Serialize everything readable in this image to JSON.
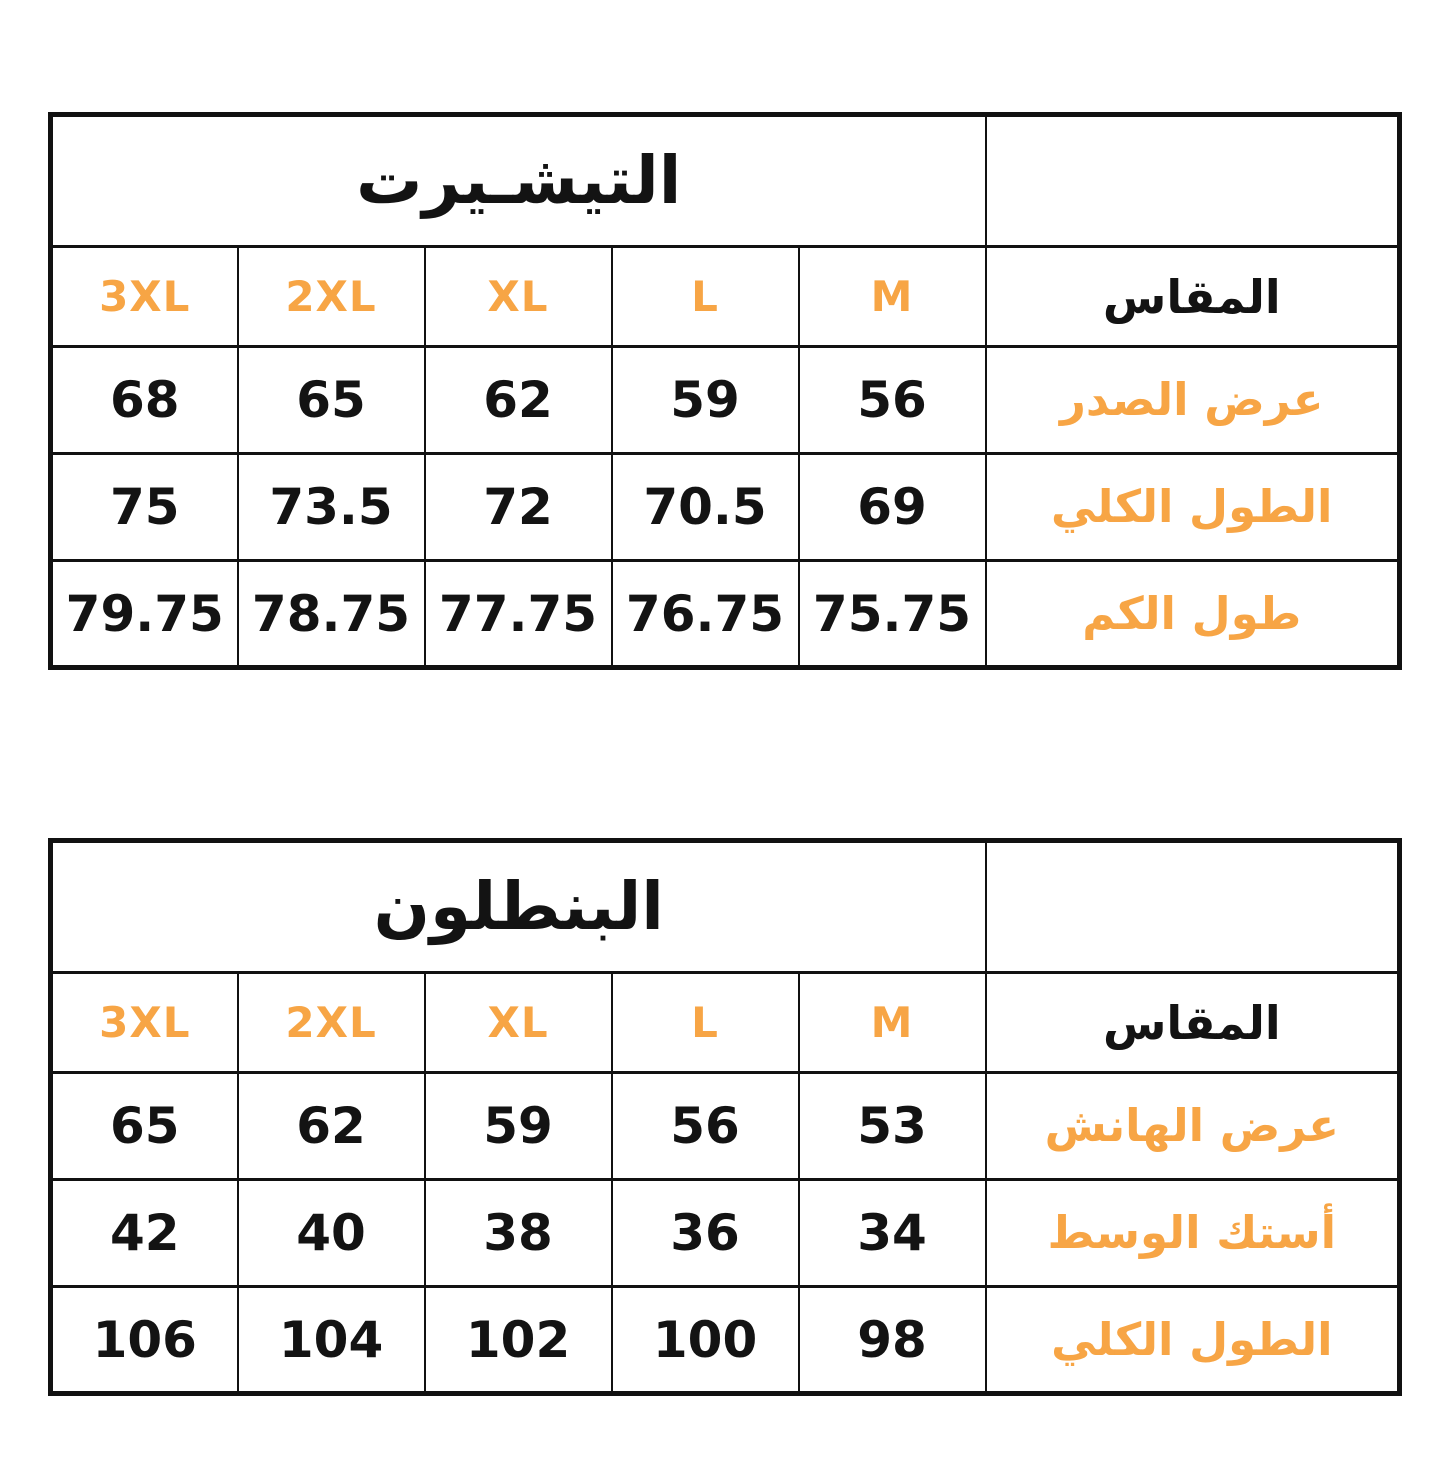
{
  "page": {
    "background": "#ffffff",
    "accent_orange": "#F7A545",
    "text_black": "#131313",
    "border_black": "#111111"
  },
  "tables": [
    {
      "title": "التيشـيرت",
      "size_header": "المقاس",
      "sizes": [
        "M",
        "L",
        "XL",
        "2XL",
        "3XL"
      ],
      "rows": [
        {
          "label": "عرض الصدر",
          "values": [
            "56",
            "59",
            "62",
            "65",
            "68"
          ]
        },
        {
          "label": "الطول الكلي",
          "values": [
            "69",
            "70.5",
            "72",
            "73.5",
            "75"
          ]
        },
        {
          "label": "طول الكم",
          "values": [
            "75.75",
            "76.75",
            "77.75",
            "78.75",
            "79.75"
          ]
        }
      ]
    },
    {
      "title": "البنطلون",
      "size_header": "المقاس",
      "sizes": [
        "M",
        "L",
        "XL",
        "2XL",
        "3XL"
      ],
      "rows": [
        {
          "label": "عرض الهانش",
          "values": [
            "53",
            "56",
            "59",
            "62",
            "65"
          ]
        },
        {
          "label": "أستك الوسط",
          "values": [
            "34",
            "36",
            "38",
            "40",
            "42"
          ]
        },
        {
          "label": "الطول الكلي",
          "values": [
            "98",
            "100",
            "102",
            "104",
            "106"
          ]
        }
      ]
    }
  ]
}
